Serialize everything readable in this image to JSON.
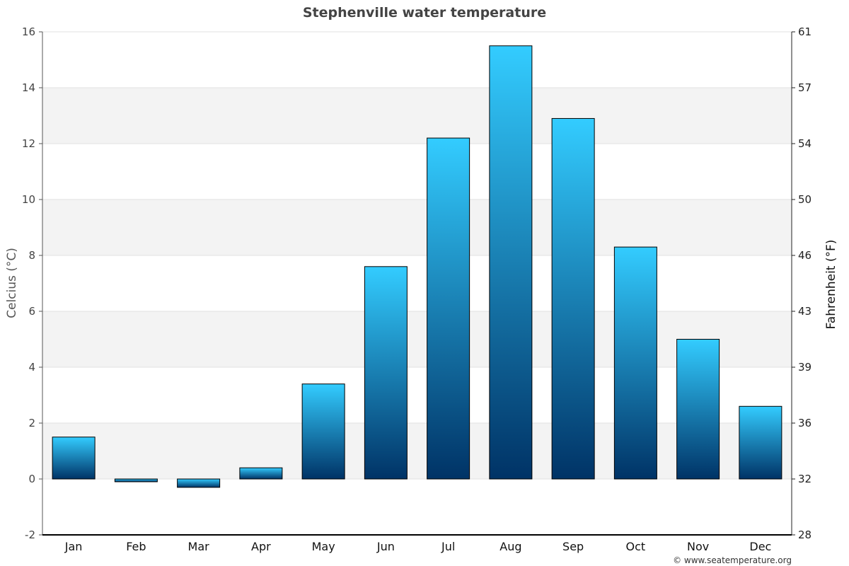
{
  "chart_data": {
    "type": "bar",
    "title": "Stephenville water temperature",
    "categories": [
      "Jan",
      "Feb",
      "Mar",
      "Apr",
      "May",
      "Jun",
      "Jul",
      "Aug",
      "Sep",
      "Oct",
      "Nov",
      "Dec"
    ],
    "series": [
      {
        "values": [
          1.5,
          -0.1,
          -0.3,
          0.4,
          3.4,
          7.6,
          12.2,
          15.5,
          12.9,
          8.3,
          5.0,
          2.6
        ]
      }
    ],
    "ylabel": "Celcius (°C)",
    "ylabel_right": "Fahrenheit (°F)",
    "ylim": [
      -2,
      16
    ],
    "yticks": [
      -2,
      0,
      2,
      4,
      6,
      8,
      10,
      12,
      14,
      16
    ],
    "yticks_right": [
      "28",
      "32",
      "36",
      "39",
      "43",
      "46",
      "50",
      "54",
      "57",
      "61"
    ],
    "grid": true,
    "legend": "none",
    "colors": {
      "bar_top": "#33ccff",
      "bar_bottom": "#003366",
      "band": "#f3f3f3",
      "grid": "#e0e0e0",
      "axis": "#000000"
    },
    "credit": "© www.seatemperature.org"
  }
}
